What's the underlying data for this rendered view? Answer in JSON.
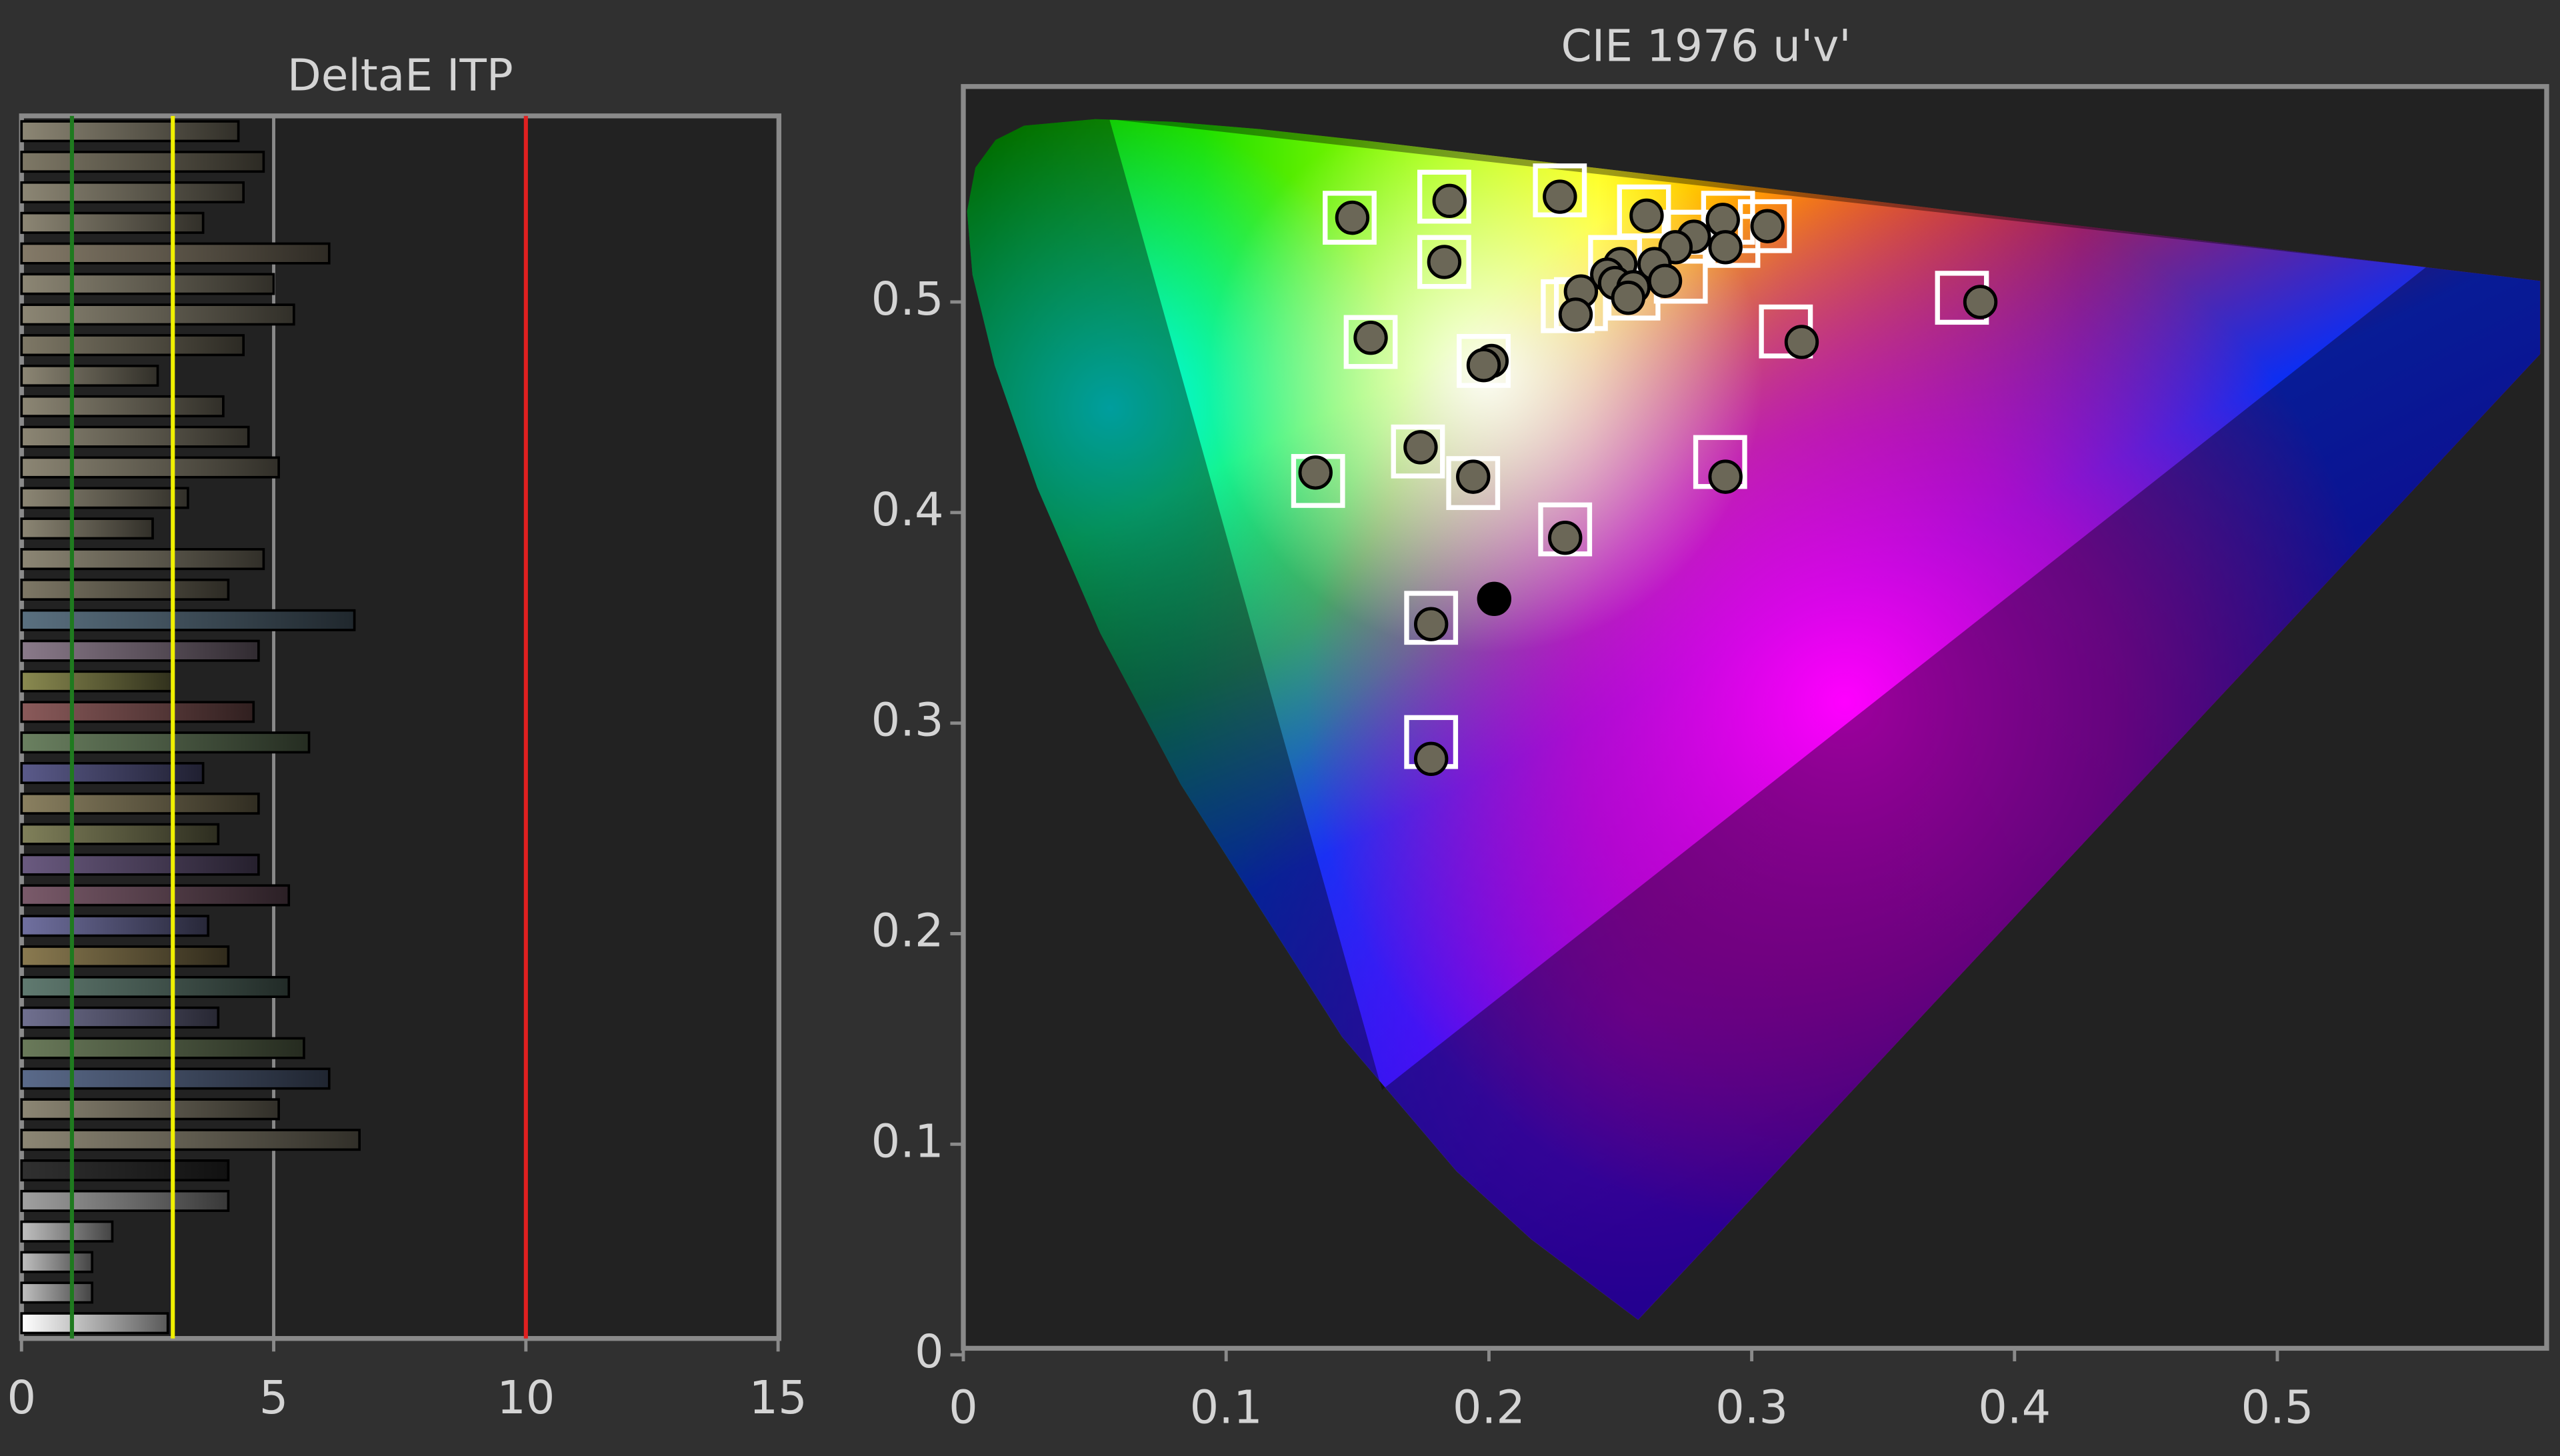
{
  "charts": [
    {
      "type": "bar",
      "orientation": "horizontal",
      "title": "DeltaE ITP",
      "categories": [
        null,
        null,
        null,
        null,
        null,
        null,
        null,
        null,
        null,
        null,
        null,
        null,
        null,
        null,
        null,
        null,
        null,
        null,
        null,
        null,
        null,
        null,
        null,
        null,
        null,
        null,
        null,
        null,
        null,
        null,
        null,
        null,
        null,
        null,
        null,
        null,
        null,
        null,
        null,
        null
      ],
      "values": [
        4.3,
        4.8,
        4.4,
        3.6,
        6.1,
        5.0,
        5.4,
        4.4,
        2.7,
        4.0,
        4.5,
        5.1,
        3.3,
        2.6,
        4.8,
        4.1,
        6.6,
        4.7,
        3.0,
        4.6,
        5.7,
        3.6,
        4.7,
        3.9,
        4.7,
        5.3,
        3.7,
        4.1,
        5.3,
        3.9,
        5.6,
        6.1,
        5.1,
        6.7,
        4.1,
        4.1,
        1.8,
        1.4,
        1.4,
        2.9
      ],
      "colors": [
        "#8c8674",
        "#7e7866",
        "#8c8674",
        "#8c8674",
        "#847a68",
        "#8c8674",
        "#8c8674",
        "#7e7866",
        "#8c8674",
        "#8c8674",
        "#8c8674",
        "#8c8674",
        "#8c8674",
        "#8c8674",
        "#8c8674",
        "#7e7866",
        "#5a7080",
        "#8a7a8a",
        "#8a8a50",
        "#8a5a5a",
        "#6a8060",
        "#5a5a8a",
        "#8a8060",
        "#80805a",
        "#6a5a80",
        "#7a5a6a",
        "#7070a0",
        "#8a7a50",
        "#607a70",
        "#707090",
        "#6a7a5a",
        "#5a6a8a",
        "#8c8674",
        "#8c8674",
        "#303030",
        "#a0a0a0",
        "#c0c0c0",
        "#c0c0c0",
        "#c0c0c0",
        "#ffffff"
      ],
      "xlim": [
        0,
        15
      ],
      "xticks": [
        0,
        5,
        10,
        15
      ],
      "grid": true,
      "reference_lines": [
        {
          "value": 1,
          "color": "#1f7a1f"
        },
        {
          "value": 3,
          "color": "#f0f000"
        },
        {
          "value": 10,
          "color": "#e02020"
        }
      ]
    },
    {
      "type": "scatter",
      "title": "CIE 1976 u'v'",
      "xlim": [
        0,
        0.6
      ],
      "ylim": [
        0,
        0.6
      ],
      "xticks": [
        0,
        0.1,
        0.2,
        0.3,
        0.4,
        0.5
      ],
      "yticks": [
        0,
        0.1,
        0.2,
        0.3,
        0.4,
        0.5
      ],
      "series": [
        {
          "marker": "square",
          "color": "none",
          "edgecolor": "#ffffff",
          "x": [
            0.147,
            0.183,
            0.227,
            0.259,
            0.291,
            0.305,
            0.183,
            0.293,
            0.276,
            0.273,
            0.248,
            0.235,
            0.23,
            0.255,
            0.38,
            0.313,
            0.155,
            0.198,
            0.173,
            0.135,
            0.194,
            0.288,
            0.229,
            0.178,
            0.178
          ],
          "y": [
            0.54,
            0.55,
            0.553,
            0.543,
            0.54,
            0.536,
            0.519,
            0.529,
            0.531,
            0.512,
            0.519,
            0.499,
            0.498,
            0.504,
            0.502,
            0.486,
            0.481,
            0.472,
            0.429,
            0.415,
            0.414,
            0.424,
            0.392,
            0.35,
            0.291
          ]
        },
        {
          "marker": "circle",
          "color": "#6b6757",
          "edgecolor": "#000000",
          "x": [
            0.148,
            0.185,
            0.227,
            0.26,
            0.289,
            0.306,
            0.183,
            0.29,
            0.278,
            0.271,
            0.263,
            0.267,
            0.25,
            0.245,
            0.248,
            0.255,
            0.253,
            0.235,
            0.233,
            0.387,
            0.319,
            0.155,
            0.201,
            0.198,
            0.174,
            0.134,
            0.194,
            0.29,
            0.229,
            0.178,
            0.178
          ],
          "y": [
            0.54,
            0.548,
            0.55,
            0.541,
            0.539,
            0.536,
            0.519,
            0.526,
            0.531,
            0.526,
            0.518,
            0.51,
            0.518,
            0.513,
            0.509,
            0.507,
            0.502,
            0.505,
            0.494,
            0.5,
            0.481,
            0.483,
            0.472,
            0.47,
            0.431,
            0.419,
            0.417,
            0.417,
            0.388,
            0.347,
            0.283
          ]
        },
        {
          "marker": "circle",
          "color": "#000000",
          "edgecolor": "#000000",
          "x": [
            0.202
          ],
          "y": [
            0.359
          ]
        }
      ]
    }
  ]
}
